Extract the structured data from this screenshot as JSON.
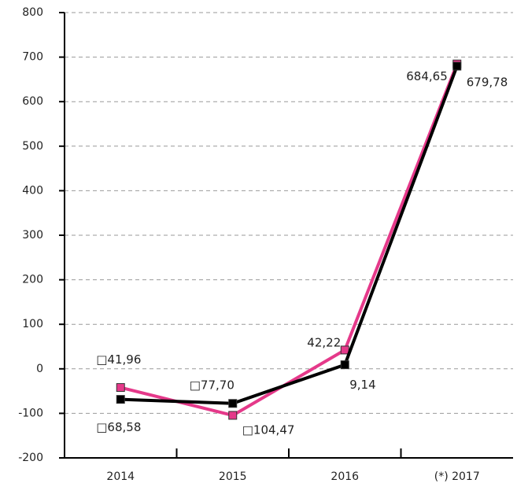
{
  "chart_data": {
    "type": "line",
    "categories": [
      "2014",
      "2015",
      "2016",
      "(*) 2017"
    ],
    "series": [
      {
        "color": "#e5398a",
        "values": [
          -41.96,
          -104.47,
          42.22,
          684.65
        ],
        "value_labels": [
          "□41,96",
          "□104,47",
          "42,22",
          "684,65"
        ]
      },
      {
        "color": "#000000",
        "values": [
          -68.58,
          -77.7,
          9.14,
          679.78
        ],
        "value_labels": [
          "□68,58",
          "□77,70",
          "9,14",
          "679,78"
        ]
      }
    ],
    "ylim": [
      -200,
      800
    ],
    "yticks": [
      -200,
      -100,
      0,
      100,
      200,
      300,
      400,
      500,
      600,
      700,
      800
    ],
    "grid": true
  }
}
